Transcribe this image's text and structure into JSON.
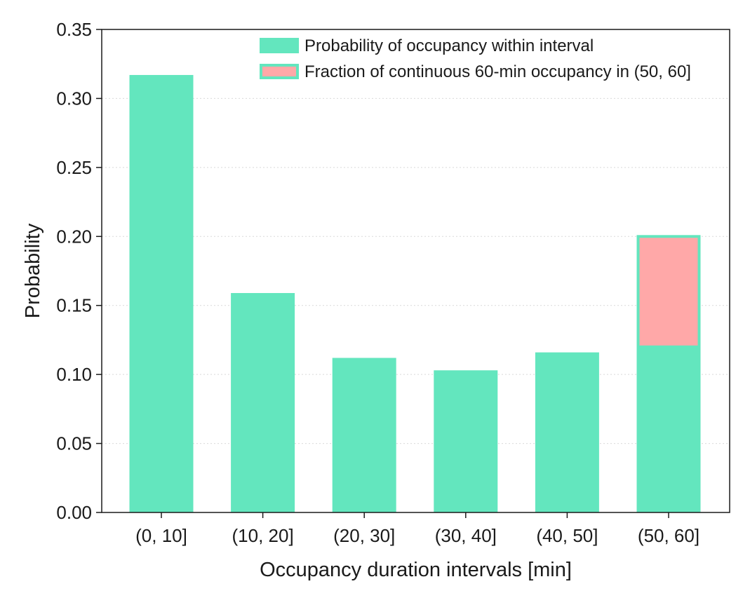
{
  "chart_data": {
    "type": "bar",
    "title": "",
    "xlabel": "Occupancy duration intervals [min]",
    "ylabel": "Probability",
    "categories": [
      "(0, 10]",
      "(10, 20]",
      "(20, 30]",
      "(30, 40]",
      "(40, 50]",
      "(50, 60]"
    ],
    "ylim": [
      0,
      0.35
    ],
    "yticks": [
      "0.00",
      "0.05",
      "0.10",
      "0.15",
      "0.20",
      "0.25",
      "0.30",
      "0.35"
    ],
    "grid": "horizontal dotted",
    "legend_position": "top-right",
    "series": [
      {
        "name": "Probability of occupancy within interval",
        "values": [
          0.317,
          0.159,
          0.112,
          0.103,
          0.116,
          0.201
        ],
        "color": "#63e6be"
      },
      {
        "name": "Fraction of continuous 60-min occupancy in (50, 60]",
        "category": "(50, 60]",
        "range": [
          0.121,
          0.199
        ],
        "color": "#ffa8a8"
      }
    ]
  }
}
